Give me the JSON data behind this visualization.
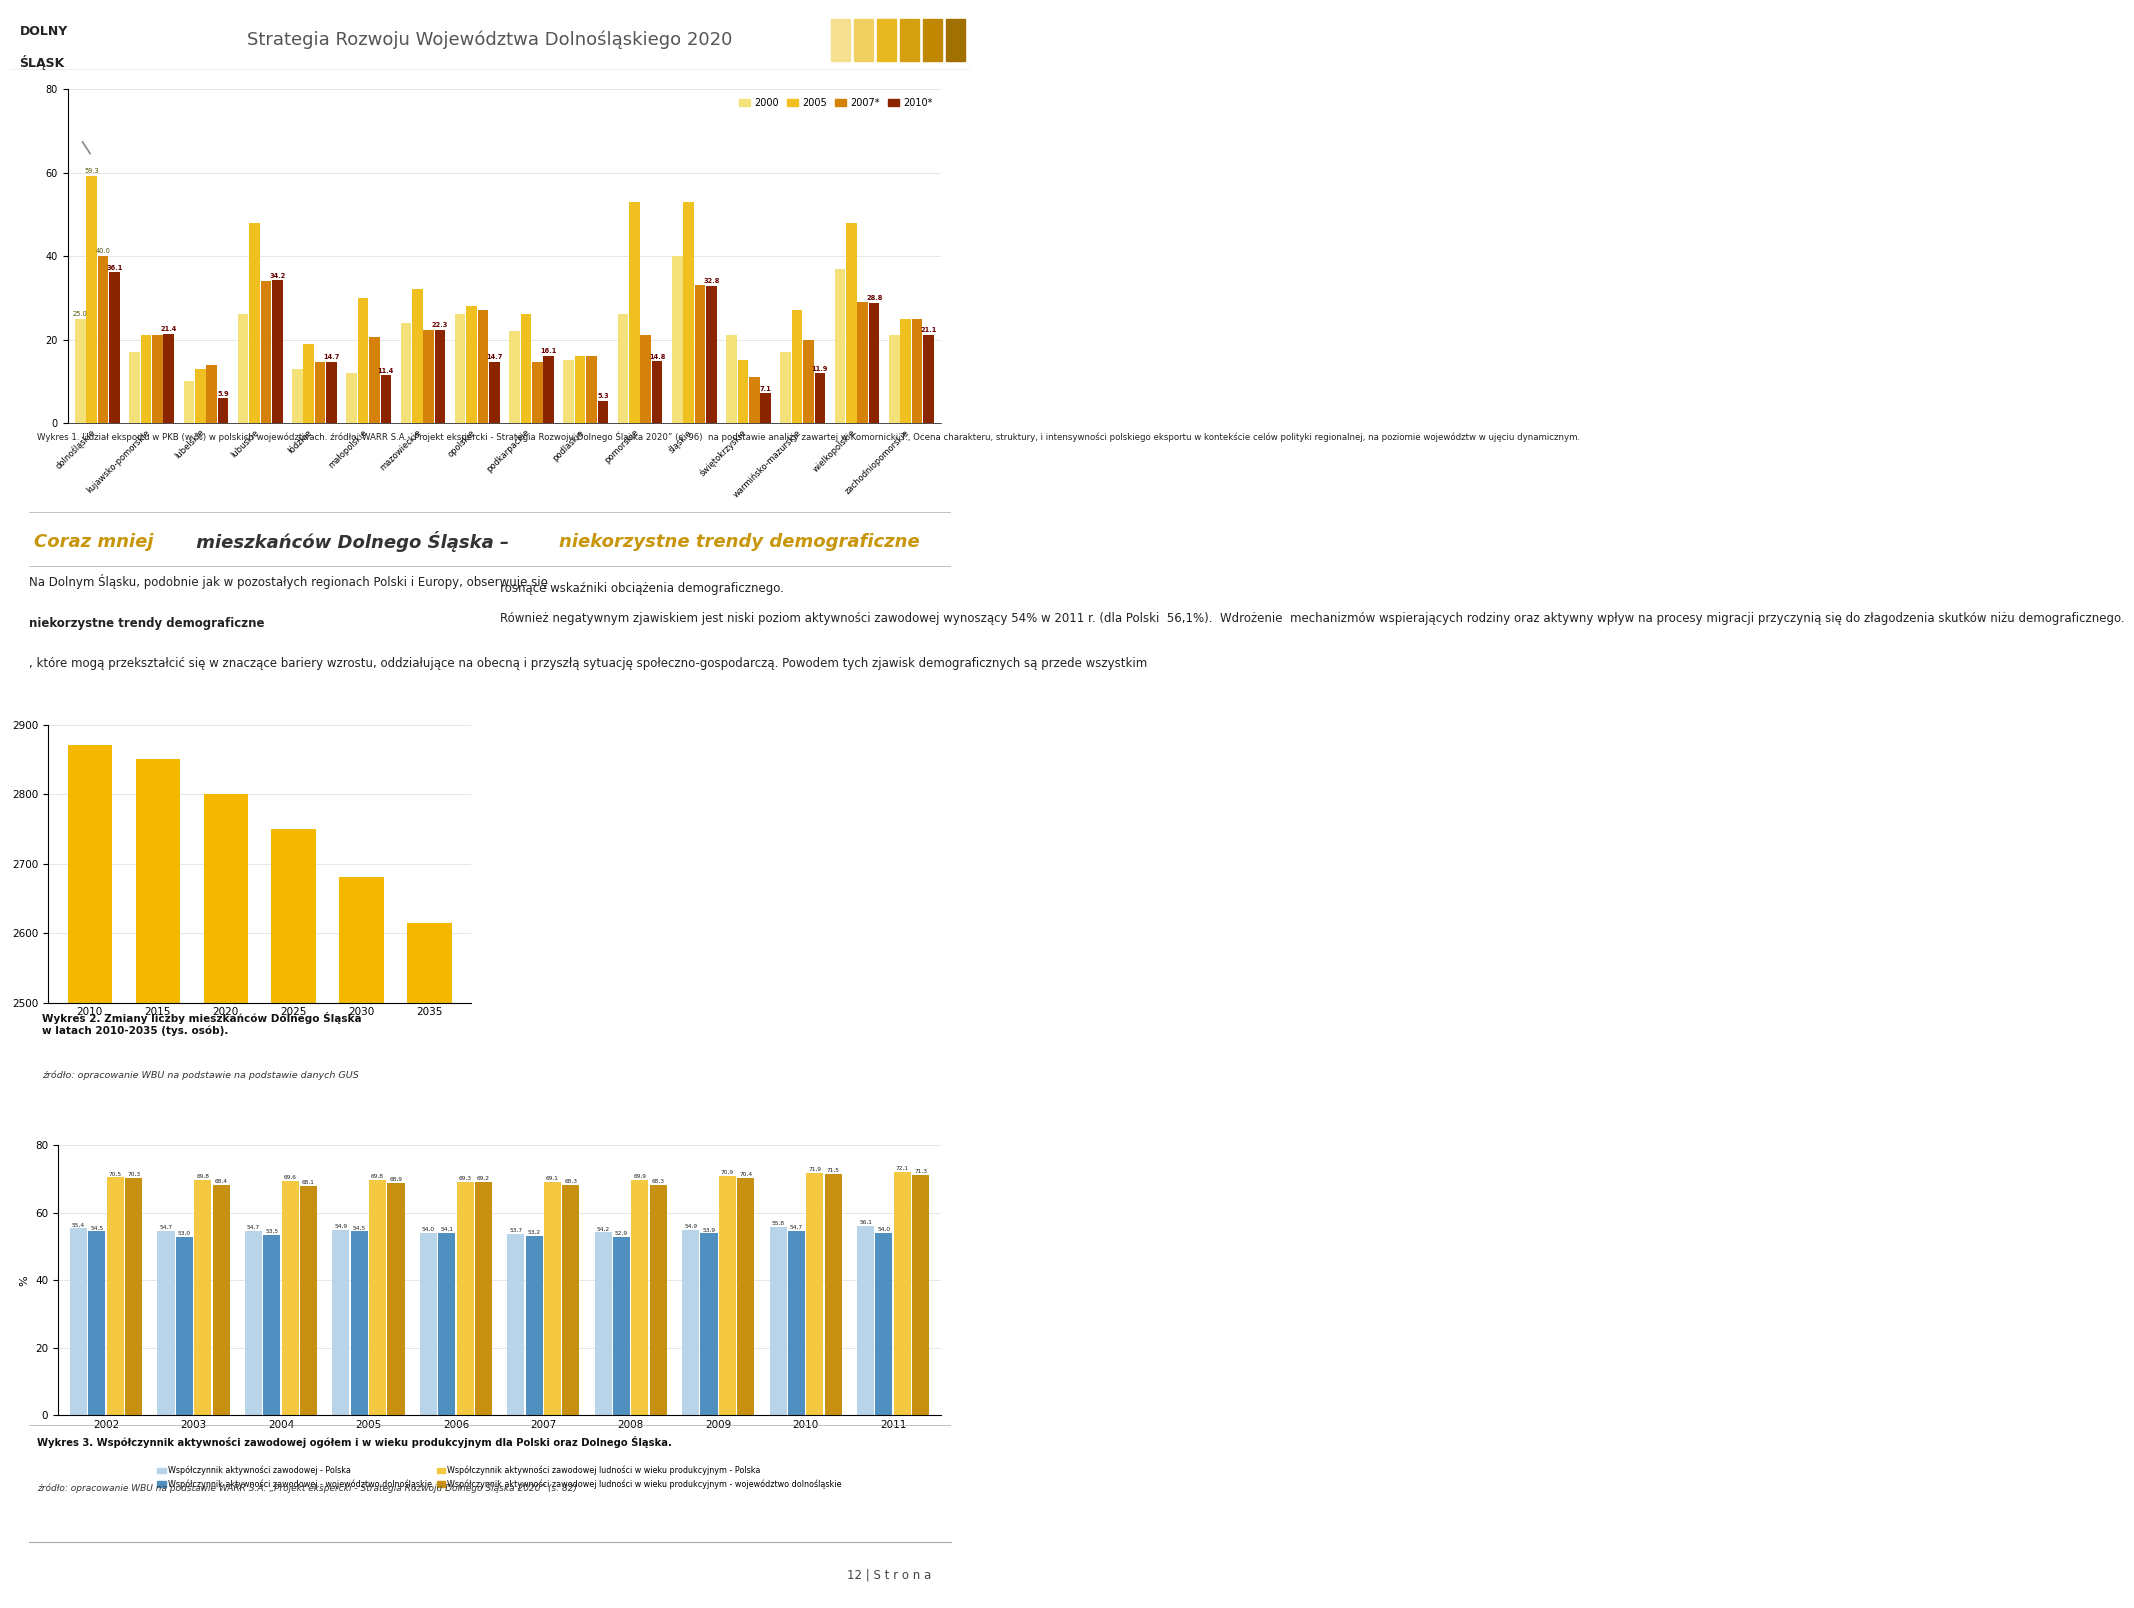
{
  "page_title": "Strategia Rozwoju Województwa Dolnośląskiego 2020",
  "background_color": "#ffffff",
  "chart1": {
    "ylim": [
      0,
      80
    ],
    "yticks": [
      0,
      20,
      40,
      60,
      80
    ],
    "categories": [
      "dolnośląskie",
      "kujawsko-pomorskie",
      "lubelskie",
      "lubuskie",
      "łódzkie",
      "małopolskie",
      "mazowieckie",
      "opolskie",
      "podkarpackie",
      "podlaskie",
      "pomorskie",
      "śląskie",
      "świętokrzyskie",
      "warmińsko-mazurskie",
      "wielkopolskie",
      "zachodniopomorskie"
    ],
    "series_2000": [
      25.0,
      17.0,
      10.0,
      26.0,
      13.0,
      12.0,
      24.0,
      26.0,
      22.0,
      15.0,
      26.0,
      40.0,
      21.0,
      17.0,
      37.0,
      21.0
    ],
    "series_2005": [
      59.3,
      21.0,
      13.0,
      48.0,
      19.0,
      30.0,
      32.0,
      28.0,
      26.0,
      16.0,
      53.0,
      53.0,
      15.0,
      27.0,
      48.0,
      25.0
    ],
    "series_2007": [
      40.0,
      21.0,
      14.0,
      34.0,
      14.7,
      20.5,
      22.3,
      27.0,
      14.7,
      16.1,
      21.0,
      33.0,
      11.0,
      20.0,
      29.0,
      25.0
    ],
    "series_2010": [
      36.1,
      21.4,
      5.9,
      34.2,
      14.7,
      11.4,
      22.3,
      14.7,
      16.1,
      5.3,
      14.8,
      32.8,
      7.1,
      11.9,
      28.8,
      21.1
    ],
    "color_2000": "#f5e179",
    "color_2005": "#f0c020",
    "color_2007": "#d4820a",
    "color_2010": "#8b2500",
    "legend_labels": [
      "2000",
      "2005",
      "2007*",
      "2010*"
    ]
  },
  "section_title_part1": "Coraz mniej",
  "section_title_part2": " mieszkańców Dolnego Śląska – ",
  "section_title_part3": "niekorzystne trendy demograficzne",
  "body_left_1": "Na Dolnym Śląsku, podobnie jak w pozostałych regionach Polski i Europy, obserwuje się ",
  "body_left_bold": "niekorzystne trendy demograficzne",
  "body_left_2": ", które mogą przekształcić się w znaczące bariery wzrostu, oddziałujące na obecną i przyszłą sytuację społeczno-gospodarczą. Powodem tych zjawisk demograficznych są przede wszystkim",
  "body_right": "rosnące wskaźniki obciążenia demograficznego.\n\nRównież negatywnym zjawiskiem jest niski poziom aktywności zawodowej wynoszący 54% w 2011 r. (dla Polski  56,1%).  Wdrożenie  mechanizmów wspierających rodziny oraz aktywny wpływ na procesy migracji przyczynią się do złagodzenia skutków niżu demograficznego.",
  "chart2": {
    "years": [
      2010,
      2015,
      2020,
      2025,
      2030,
      2035
    ],
    "values": [
      2870,
      2850,
      2800,
      2750,
      2680,
      2615
    ],
    "bar_color": "#f5b800",
    "ylim": [
      2500,
      2900
    ],
    "yticks": [
      2500,
      2600,
      2700,
      2800,
      2900
    ],
    "cap_bold": "Wykres 2. Zmiany liczby mieszkańców Dolnego Śląska\nw latach 2010-2035 (tys. osób).",
    "cap_italic": "źródło: opracowanie WBU na podstawie na podstawie danych GUS"
  },
  "chart3": {
    "ylabel": "%",
    "ylim": [
      0,
      80
    ],
    "yticks": [
      0,
      20,
      40,
      60,
      80
    ],
    "years": [
      2002,
      2003,
      2004,
      2005,
      2006,
      2007,
      2008,
      2009,
      2010,
      2011
    ],
    "wsp_ogol_polska": [
      55.4,
      54.7,
      54.7,
      54.9,
      54.0,
      53.7,
      54.2,
      54.9,
      55.8,
      56.1
    ],
    "wsp_ogol_ds": [
      54.5,
      53.0,
      53.5,
      54.5,
      54.1,
      53.2,
      52.9,
      53.9,
      54.7,
      54.0
    ],
    "wsp_prod_polska": [
      70.5,
      69.8,
      69.6,
      69.8,
      69.3,
      69.1,
      69.9,
      70.9,
      71.9,
      72.1
    ],
    "wsp_prod_ds": [
      70.3,
      68.4,
      68.1,
      68.9,
      69.2,
      68.3,
      68.3,
      70.4,
      71.5,
      71.3
    ],
    "lbl_ogol_polska": [
      "55,4",
      "54,7",
      "54,7",
      "54,9",
      "54,0",
      "53,7",
      "54,2",
      "54,9",
      "55,8",
      "56,1"
    ],
    "lbl_ogol_ds": [
      "54,5",
      "53,0",
      "53,5",
      "54,5",
      "54,1",
      "53,2",
      "52,9",
      "53,9",
      "54,7",
      "54,0"
    ],
    "lbl_prod_polska": [
      "70,5",
      "69,8",
      "69,6",
      "69,8",
      "69,3",
      "69,1",
      "69,9",
      "70,9",
      "71,9",
      "72,1"
    ],
    "lbl_prod_ds": [
      "70,3",
      "68,4",
      "68,1",
      "68,9",
      "69,2",
      "68,3",
      "68,3",
      "70,4",
      "71,5",
      "71,3"
    ],
    "color_ogol_polska": "#b8d4e8",
    "color_ogol_ds": "#5090c0",
    "color_prod_polska": "#f5c842",
    "color_prod_ds": "#c89010",
    "leg1": "Współczynnik aktywności zawodowej - Polska",
    "leg2": "Współczynnik aktywności zawodowej - województwo dolnośląskie",
    "leg3": "Współczynnik aktywności zawodowej ludności w wieku produkcyjnym - Polska",
    "leg4": "Współczynnik aktywności zawodowej ludności w wieku produkcyjnym - województwo dolnośląskie"
  },
  "footer_text": "12 | S t r o n a",
  "wykres1_bold": "Wykres 1. Udział eksportu w PKB (w %) w polskich województwach.",
  "wykres1_source": "źródło: WARR S.A. „Projekt ekspercki - Strategia Rozwoju Dolnego Śląska 2020” (s. 96)  na podstawie analizy zawartej w Komornicki T., Ocena charakteru, struktury, i intensywności polskiego eksportu w kontekście celów polityki regionalnej, na poziomie województw w ujęciu dynamicznym.",
  "wykres3_bold": "Wykres 3. Współczynnik aktywności zawodowej ogółem i w wieku produkcyjnym dla Polski oraz Dolnego Śląska.",
  "wykres3_source": "źródło: opracowanie WBU na podstawie WARR S.A. „Projekt ekspercki - Strategia Rozwoju Dolnego Śląska 2020” (s. 82)"
}
